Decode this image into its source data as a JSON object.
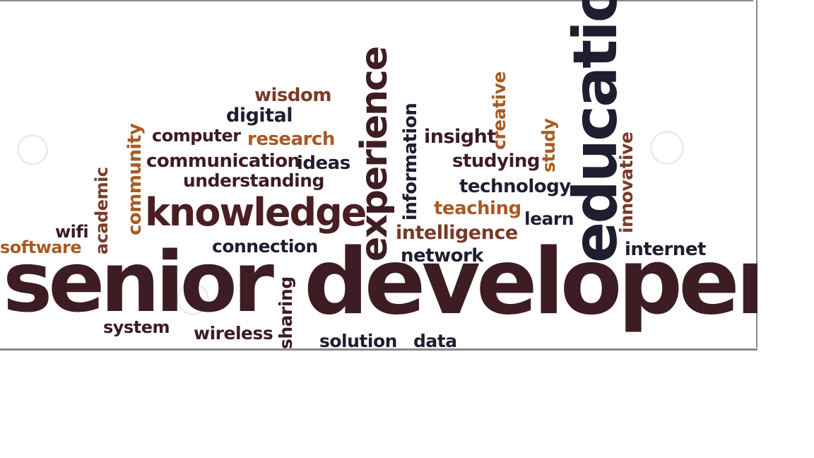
{
  "colors": {
    "dark": "#3d1c23",
    "navy": "#1e1e30",
    "brown": "#7a3a28",
    "orange": "#a95a22",
    "frame": "#8a8a8a"
  },
  "words": {
    "senior": "senior",
    "developer": "developer",
    "education": "education",
    "knowledge": "knowledge",
    "experience": "experience",
    "wisdom": "wisdom",
    "digital": "digital",
    "computer": "computer",
    "research": "research",
    "communication": "communication",
    "ideas": "ideas",
    "understanding": "understanding",
    "community": "community",
    "academic": "academic",
    "wifi": "wifi",
    "software": "software",
    "connection": "connection",
    "information": "information",
    "insight": "insight",
    "creative": "creative",
    "studying": "studying",
    "study": "study",
    "technology": "technology",
    "teaching": "teaching",
    "learn": "learn",
    "intelligence": "intelligence",
    "innovative": "innovative",
    "network": "network",
    "internet": "internet",
    "system": "system",
    "wireless": "wireless",
    "sharing": "sharing",
    "solution": "solution",
    "data": "data"
  }
}
